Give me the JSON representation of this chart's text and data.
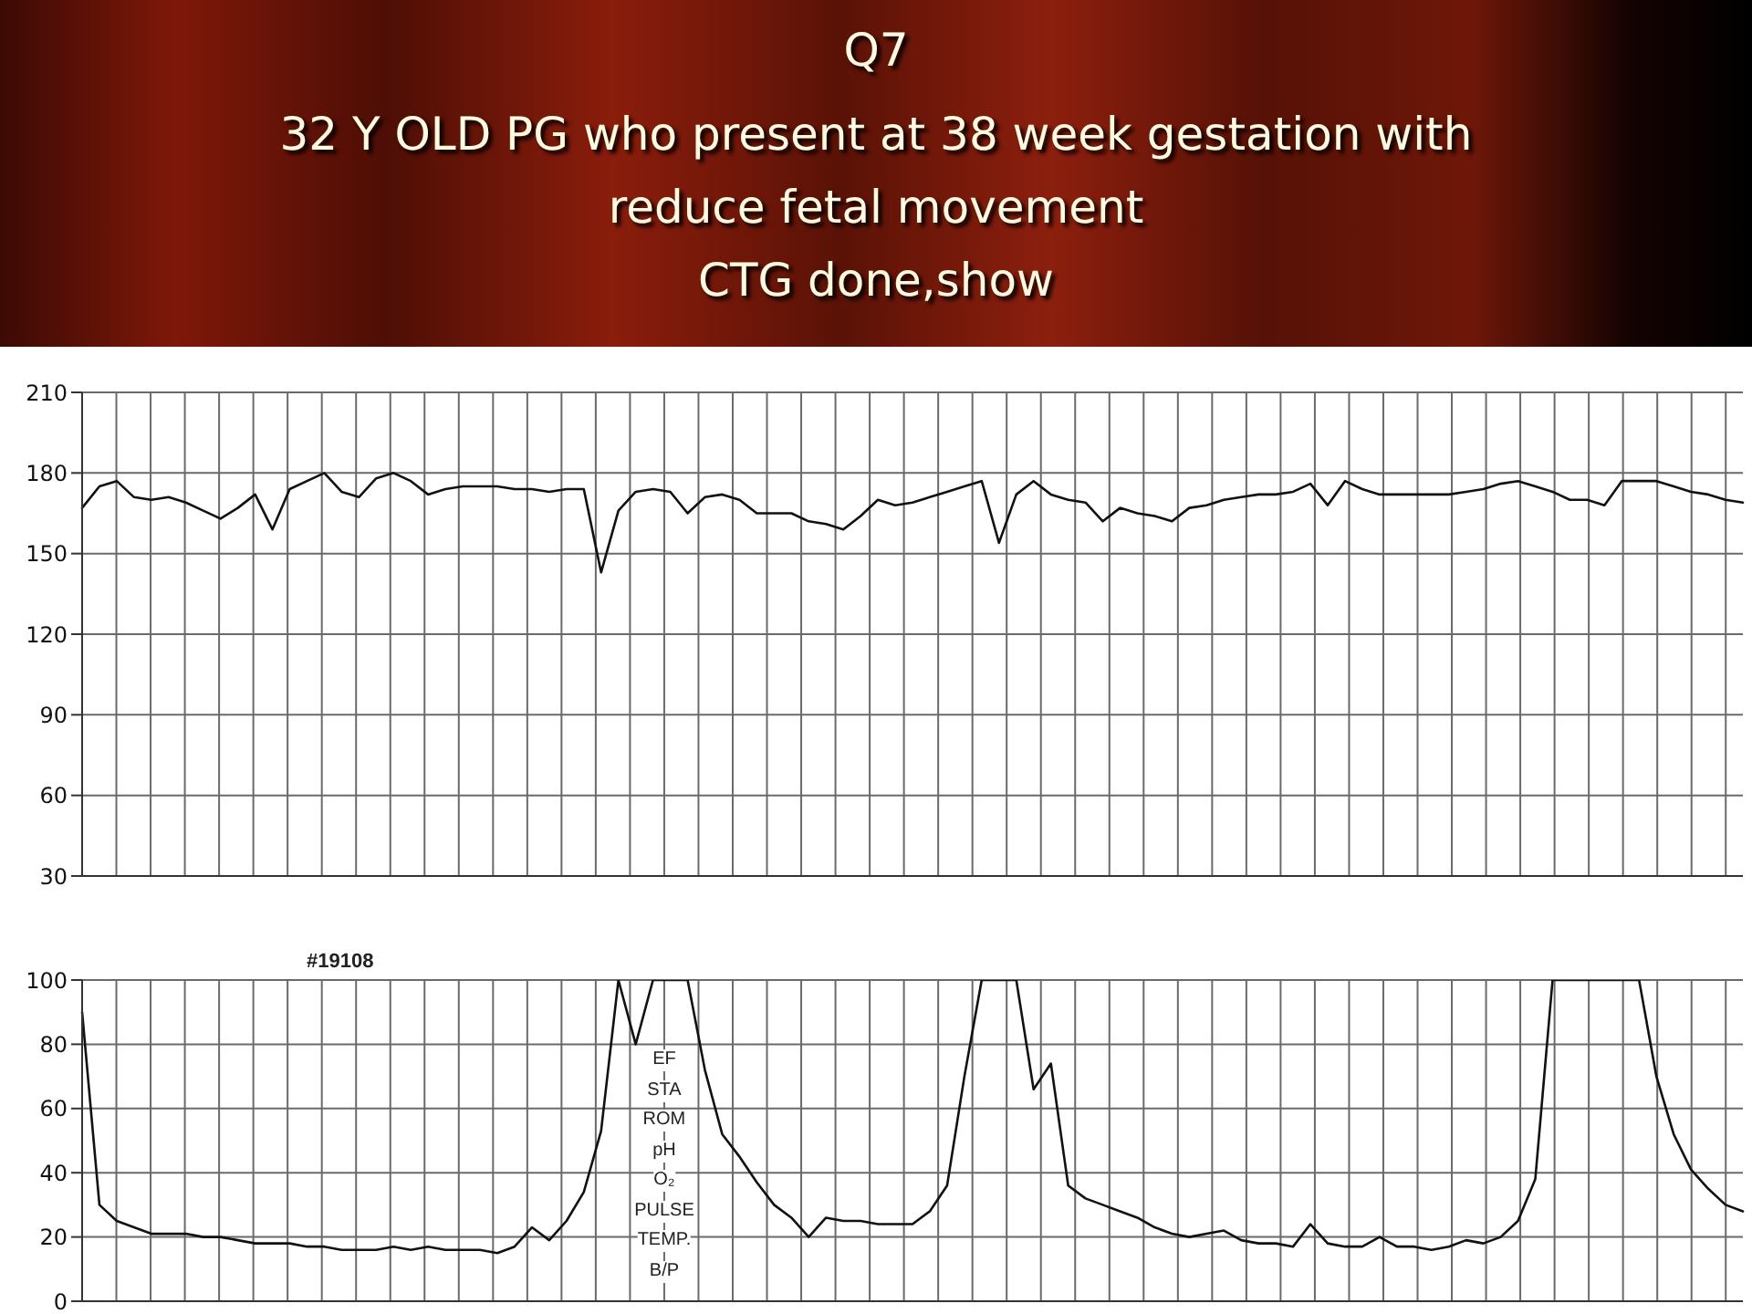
{
  "chart_data": [
    {
      "type": "line",
      "title": "Q7",
      "subtitle": "32 Y OLD PG who present at 38 week gestation with\nreduce fetal movement\nCTG done,show",
      "tick_labels": "y",
      "grid": true,
      "ylim": [
        30,
        210
      ],
      "yticks": [
        30,
        60,
        90,
        120,
        150,
        180,
        210
      ],
      "categories": [
        null,
        null,
        null,
        null,
        null,
        null,
        null,
        null,
        null,
        null,
        null,
        null,
        null,
        null,
        null,
        null,
        null,
        null,
        null,
        null,
        null,
        null,
        null,
        null,
        null,
        null,
        null,
        null,
        null,
        null,
        null,
        null,
        null,
        null,
        null,
        null,
        null,
        null,
        null,
        null,
        null,
        null,
        null,
        null,
        null,
        null,
        null,
        null,
        null,
        null,
        null,
        null,
        null,
        null,
        null,
        null,
        null,
        null,
        null,
        null,
        null,
        null,
        null,
        null,
        null,
        null,
        null,
        null,
        null,
        null,
        null,
        null,
        null,
        null,
        null,
        null,
        null,
        null,
        null,
        null,
        null,
        null,
        null,
        null,
        null,
        null,
        null,
        null,
        null,
        null,
        null,
        null,
        null,
        null,
        null,
        null,
        null
      ],
      "series": [
        {
          "color": "#111111",
          "values": [
            167,
            175,
            177,
            171,
            170,
            171,
            169,
            166,
            163,
            167,
            172,
            159,
            174,
            177,
            180,
            173,
            171,
            178,
            180,
            177,
            172,
            174,
            175,
            175,
            175,
            174,
            174,
            173,
            174,
            174,
            143,
            166,
            173,
            174,
            173,
            165,
            171,
            172,
            170,
            165,
            165,
            165,
            162,
            161,
            159,
            164,
            170,
            168,
            169,
            171,
            173,
            175,
            177,
            154,
            172,
            177,
            172,
            170,
            169,
            162,
            167,
            165,
            164,
            162,
            167,
            168,
            170,
            171,
            172,
            172,
            173,
            176,
            168,
            177,
            174,
            172,
            172,
            172,
            172,
            172,
            173,
            174,
            176,
            177,
            175,
            173,
            170,
            170,
            168,
            177,
            177,
            177,
            175,
            173,
            172,
            170,
            169
          ]
        }
      ]
    },
    {
      "type": "line",
      "tick_labels": "y",
      "grid": true,
      "ylim": [
        0,
        100
      ],
      "yticks": [
        0,
        20,
        40,
        60,
        80,
        100
      ],
      "annotations": [
        "#19108",
        "EF",
        "STA",
        "ROM",
        "pH",
        "O₂",
        "PULSE",
        "TEMP.",
        "B/P"
      ],
      "categories": [
        null,
        null,
        null,
        null,
        null,
        null,
        null,
        null,
        null,
        null,
        null,
        null,
        null,
        null,
        null,
        null,
        null,
        null,
        null,
        null,
        null,
        null,
        null,
        null,
        null,
        null,
        null,
        null,
        null,
        null,
        null,
        null,
        null,
        null,
        null,
        null,
        null,
        null,
        null,
        null,
        null,
        null,
        null,
        null,
        null,
        null,
        null,
        null,
        null,
        null,
        null,
        null,
        null,
        null,
        null,
        null,
        null,
        null,
        null,
        null,
        null,
        null,
        null,
        null,
        null,
        null,
        null,
        null,
        null,
        null,
        null,
        null,
        null,
        null,
        null,
        null,
        null,
        null,
        null,
        null,
        null,
        null,
        null,
        null,
        null,
        null,
        null,
        null,
        null,
        null,
        null,
        null,
        null,
        null,
        null,
        null,
        null
      ],
      "series": [
        {
          "color": "#111111",
          "values": [
            90,
            30,
            25,
            23,
            21,
            21,
            21,
            20,
            20,
            19,
            18,
            18,
            18,
            17,
            17,
            16,
            16,
            16,
            17,
            16,
            17,
            16,
            16,
            16,
            15,
            17,
            23,
            19,
            25,
            34,
            53,
            100,
            80,
            100,
            100,
            100,
            72,
            52,
            45,
            37,
            30,
            26,
            20,
            26,
            25,
            25,
            24,
            24,
            24,
            28,
            36,
            70,
            100,
            100,
            100,
            66,
            74,
            36,
            32,
            30,
            28,
            26,
            23,
            21,
            20,
            21,
            22,
            19,
            18,
            18,
            17,
            24,
            18,
            17,
            17,
            20,
            17,
            17,
            16,
            17,
            19,
            18,
            20,
            25,
            38,
            100,
            100,
            100,
            100,
            100,
            100,
            70,
            52,
            41,
            35,
            30,
            28
          ]
        }
      ]
    }
  ]
}
